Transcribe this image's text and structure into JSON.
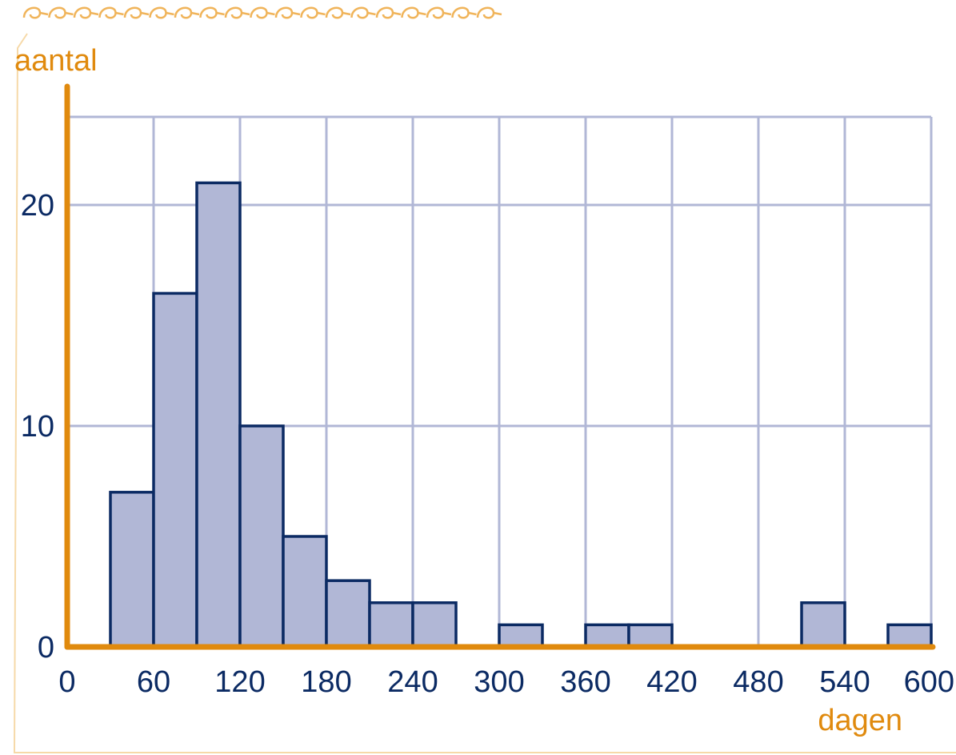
{
  "colors": {
    "axis": "#e08a0e",
    "grid": "#b1b7d6",
    "bar_fill": "#b1b7d6",
    "bar_stroke": "#0b2a63",
    "tick_text": "#0b2a63"
  },
  "chart_data": {
    "type": "bar",
    "histogram": true,
    "title": "",
    "xlabel": "dagen",
    "ylabel": "aantal",
    "xlim": [
      0,
      600
    ],
    "ylim": [
      0,
      24
    ],
    "x_ticks": [
      0,
      60,
      120,
      180,
      240,
      300,
      360,
      420,
      480,
      540,
      600
    ],
    "y_ticks": [
      0,
      10,
      20
    ],
    "grid": true,
    "bin_width": 30,
    "bins": [
      {
        "start": 30,
        "end": 60,
        "count": 7
      },
      {
        "start": 60,
        "end": 90,
        "count": 16
      },
      {
        "start": 90,
        "end": 120,
        "count": 21
      },
      {
        "start": 120,
        "end": 150,
        "count": 10
      },
      {
        "start": 150,
        "end": 180,
        "count": 5
      },
      {
        "start": 180,
        "end": 210,
        "count": 3
      },
      {
        "start": 210,
        "end": 240,
        "count": 2
      },
      {
        "start": 240,
        "end": 270,
        "count": 2
      },
      {
        "start": 300,
        "end": 330,
        "count": 1
      },
      {
        "start": 360,
        "end": 390,
        "count": 1
      },
      {
        "start": 390,
        "end": 420,
        "count": 1
      },
      {
        "start": 510,
        "end": 540,
        "count": 2
      },
      {
        "start": 570,
        "end": 600,
        "count": 1
      }
    ]
  }
}
